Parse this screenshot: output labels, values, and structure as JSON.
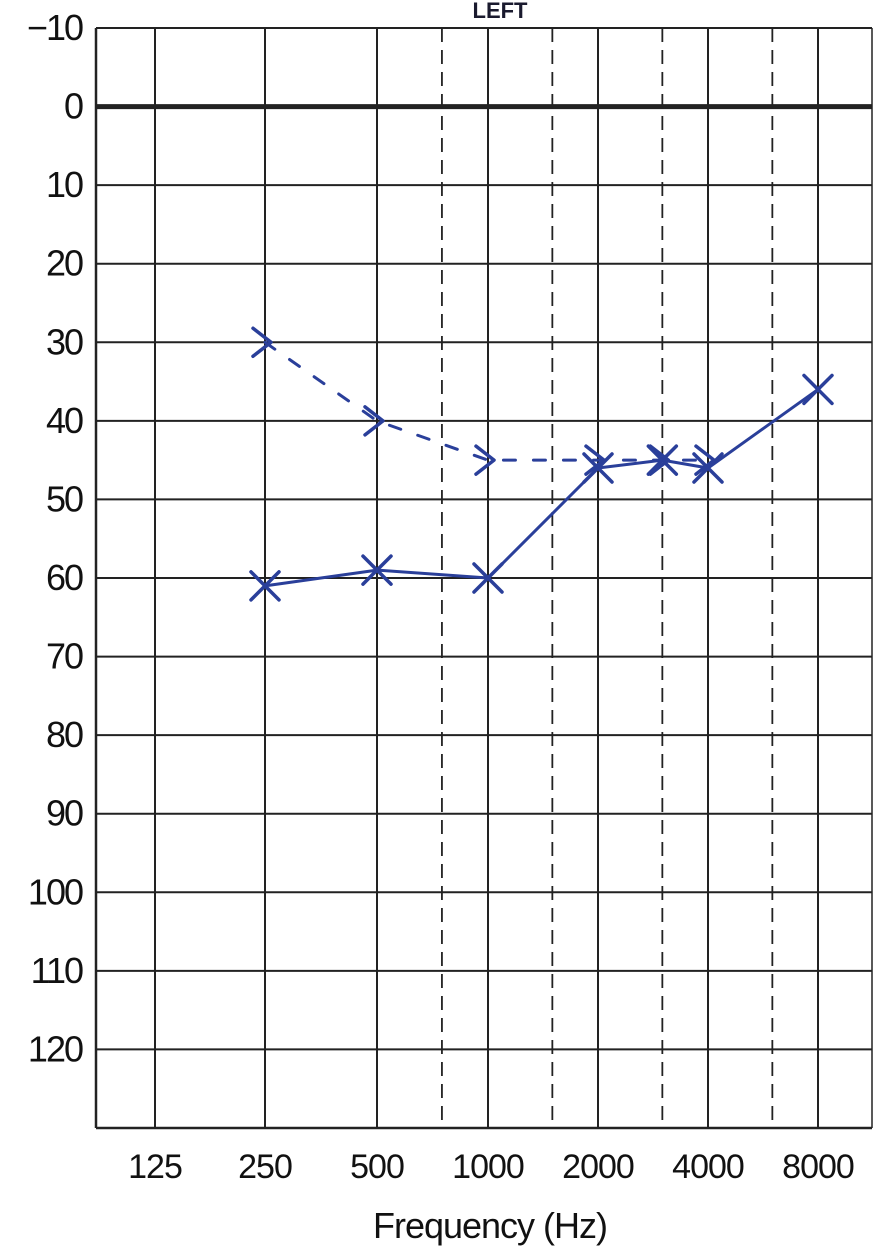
{
  "chart_data": {
    "type": "line",
    "title": "LEFT",
    "xlabel": "Frequency (Hz)",
    "ylabel": "",
    "x_categories": [
      "125",
      "250",
      "500",
      "1000",
      "2000",
      "4000",
      "8000"
    ],
    "ylim": [
      -10,
      130
    ],
    "y_ticks": [
      "−10",
      "0",
      "10",
      "20",
      "30",
      "40",
      "50",
      "60",
      "70",
      "80",
      "90",
      "100",
      "110",
      "120"
    ],
    "grid": true,
    "intermediate_freqs_dashed": [
      "750",
      "1500",
      "3000",
      "6000"
    ],
    "reference_line": 0,
    "series": [
      {
        "symbol": "X",
        "line_style": "solid",
        "color": "#2a3f9a",
        "points": [
          {
            "x": "250",
            "y": 61
          },
          {
            "x": "500",
            "y": 59
          },
          {
            "x": "1000",
            "y": 60
          },
          {
            "x": "2000",
            "y": 46
          },
          {
            "x": "3000",
            "y": 45
          },
          {
            "x": "4000",
            "y": 46
          },
          {
            "x": "8000",
            "y": 36
          }
        ]
      },
      {
        "symbol": ">",
        "line_style": "dashed",
        "color": "#2a3f9a",
        "points": [
          {
            "x": "250",
            "y": 30
          },
          {
            "x": "500",
            "y": 40
          },
          {
            "x": "1000",
            "y": 45
          },
          {
            "x": "2000",
            "y": 45
          },
          {
            "x": "3000",
            "y": 45
          },
          {
            "x": "4000",
            "y": 45
          }
        ]
      }
    ]
  }
}
